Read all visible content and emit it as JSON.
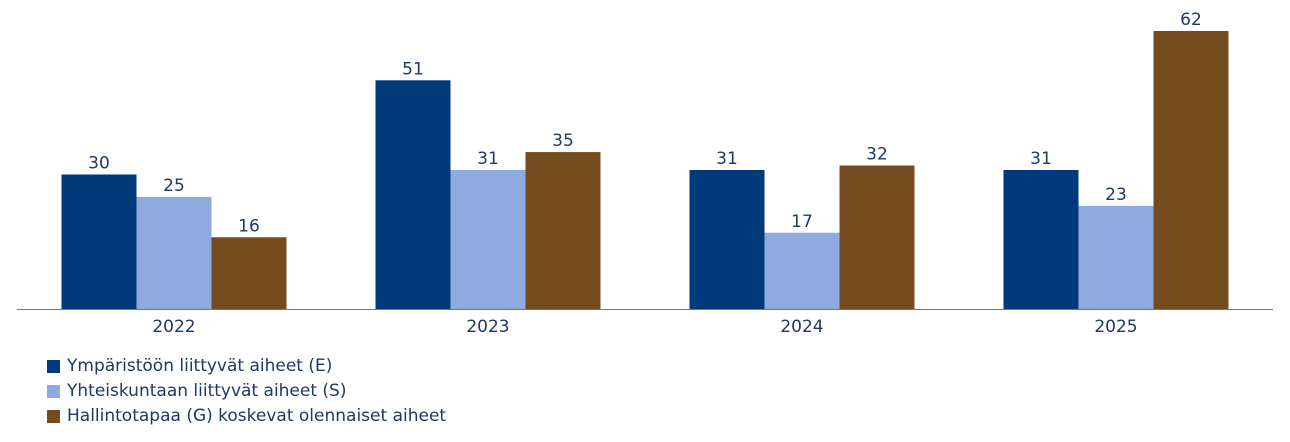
{
  "chart_data": {
    "type": "bar",
    "categories": [
      "2022",
      "2023",
      "2024",
      "2025"
    ],
    "series": [
      {
        "name": "Ympäristöön liittyvät aiheet (E)",
        "values": [
          30,
          51,
          31,
          31
        ],
        "color": "#003a7a"
      },
      {
        "name": "Yhteiskuntaan liittyvät aiheet (S)",
        "values": [
          25,
          31,
          17,
          23
        ],
        "color": "#8eaadf"
      },
      {
        "name": "Hallintotapaa (G) koskevat olennaiset aiheet",
        "values": [
          16,
          35,
          32,
          62
        ],
        "color": "#744b1f"
      }
    ],
    "ylim": [
      0,
      62
    ],
    "grid": false,
    "legend_position": "bottom-left",
    "axis_color": "#5b7ca8",
    "label_color": "#1f3864"
  }
}
